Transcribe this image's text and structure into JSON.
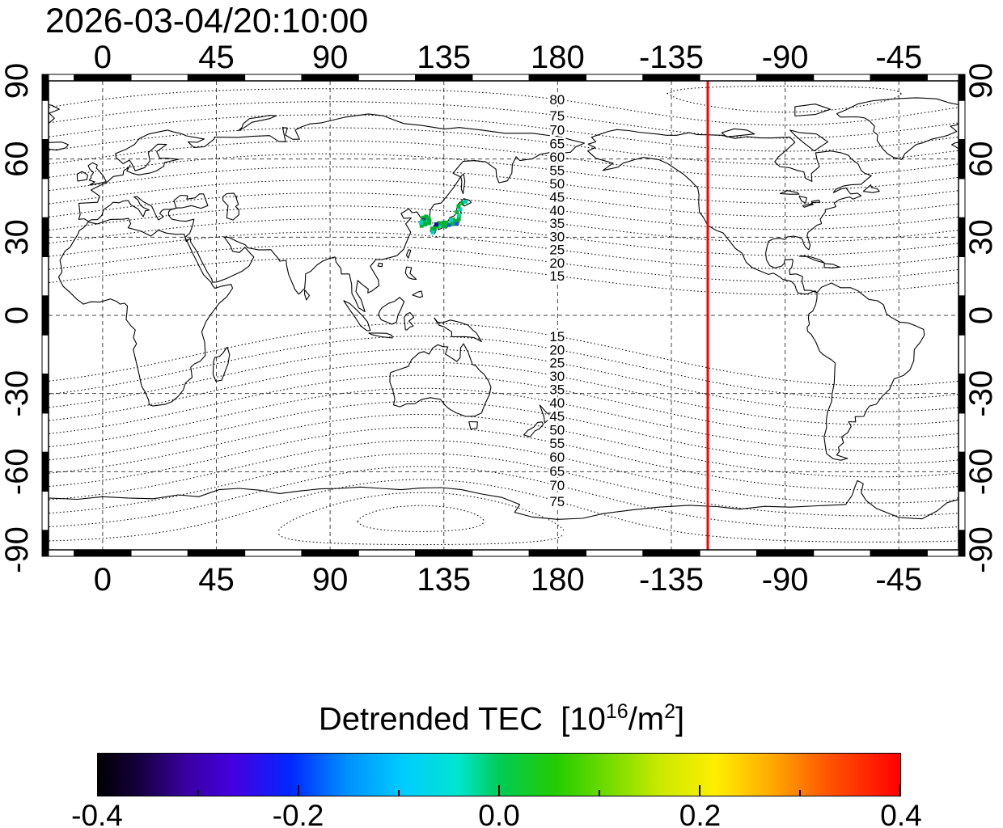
{
  "header": {
    "timestamp": "2026-03-04/20:10:00"
  },
  "chart_data": {
    "type": "map",
    "projection": "equirectangular",
    "title": "2026-03-04/20:10:00",
    "map_window": {
      "lon_min": -21.4,
      "lon_max": 338.6,
      "lat_min": -90,
      "lat_max": 90
    },
    "axes": {
      "lon_tick_values": [
        0,
        45,
        90,
        135,
        180,
        225,
        270,
        315
      ],
      "lon_tick_labels": [
        "0",
        "45",
        "90",
        "135",
        "180",
        "-135",
        "-90",
        "-45"
      ],
      "lat_tick_values": [
        90,
        60,
        30,
        0,
        -30,
        -60,
        -90
      ],
      "lat_tick_labels": [
        "90",
        "60",
        "30",
        "0",
        "-30",
        "-60",
        "-90"
      ]
    },
    "grid": {
      "style": "dashed",
      "lon_interval_deg": 45,
      "lat_interval_deg": 30
    },
    "magnetic_latitude_contours": {
      "style": "dotted",
      "interval_deg": 5,
      "min_level": 15,
      "max_level": 85,
      "labeled_levels_north": [
        80,
        75,
        70,
        65,
        60,
        55,
        50,
        45,
        40,
        35,
        30,
        25,
        20,
        15
      ],
      "labeled_levels_south": [
        15,
        20,
        25,
        30,
        35,
        40,
        45,
        50,
        55,
        60,
        65,
        70,
        75
      ],
      "label_longitude_deg": 180
    },
    "red_meridian": {
      "longitude_deg": -120.6,
      "color": "#ff0000"
    },
    "tec_points": [
      {
        "lon": 126.9,
        "lat": 37.5,
        "color": "#00b432"
      },
      {
        "lon": 127.5,
        "lat": 37.2,
        "color": "#00b432"
      },
      {
        "lon": 128.2,
        "lat": 37.4,
        "color": "#00d2c8"
      },
      {
        "lon": 126.7,
        "lat": 36.8,
        "color": "#00b432"
      },
      {
        "lon": 127.3,
        "lat": 36.5,
        "color": "#1e0a96"
      },
      {
        "lon": 127.8,
        "lat": 36.2,
        "color": "#1e0a96"
      },
      {
        "lon": 128.3,
        "lat": 36.0,
        "color": "#2846ff"
      },
      {
        "lon": 126.5,
        "lat": 36.1,
        "color": "#00b432"
      },
      {
        "lon": 127.0,
        "lat": 35.7,
        "color": "#00b432"
      },
      {
        "lon": 128.0,
        "lat": 35.5,
        "color": "#00b432"
      },
      {
        "lon": 128.9,
        "lat": 35.3,
        "color": "#00e096"
      },
      {
        "lon": 126.4,
        "lat": 35.0,
        "color": "#2846ff"
      },
      {
        "lon": 127.6,
        "lat": 34.9,
        "color": "#00b432"
      },
      {
        "lon": 129.2,
        "lat": 35.6,
        "color": "#00b432"
      },
      {
        "lon": 126.2,
        "lat": 34.4,
        "color": "#00b432"
      },
      {
        "lon": 128.6,
        "lat": 36.6,
        "color": "#00d2c8"
      },
      {
        "lon": 129.0,
        "lat": 37.0,
        "color": "#00b432"
      },
      {
        "lon": 128.0,
        "lat": 37.9,
        "color": "#00b432"
      },
      {
        "lon": 129.3,
        "lat": 36.4,
        "color": "#00b432"
      },
      {
        "lon": 126.0,
        "lat": 35.6,
        "color": "#00d2c8"
      },
      {
        "lon": 130.4,
        "lat": 33.3,
        "color": "#00b432"
      },
      {
        "lon": 131.0,
        "lat": 32.6,
        "color": "#00b432"
      },
      {
        "lon": 130.6,
        "lat": 31.8,
        "color": "#00d2c8"
      },
      {
        "lon": 131.4,
        "lat": 33.6,
        "color": "#00b432"
      },
      {
        "lon": 132.6,
        "lat": 34.2,
        "color": "#00b432"
      },
      {
        "lon": 133.8,
        "lat": 34.4,
        "color": "#00e096"
      },
      {
        "lon": 134.8,
        "lat": 34.6,
        "color": "#00b432"
      },
      {
        "lon": 135.6,
        "lat": 34.8,
        "color": "#00d2c8"
      },
      {
        "lon": 136.3,
        "lat": 34.9,
        "color": "#00b432"
      },
      {
        "lon": 137.1,
        "lat": 34.7,
        "color": "#2846ff"
      },
      {
        "lon": 138.3,
        "lat": 35.0,
        "color": "#00b432"
      },
      {
        "lon": 139.1,
        "lat": 35.3,
        "color": "#00b432"
      },
      {
        "lon": 139.9,
        "lat": 35.6,
        "color": "#00d2c8"
      },
      {
        "lon": 140.5,
        "lat": 36.2,
        "color": "#00b432"
      },
      {
        "lon": 140.9,
        "lat": 37.1,
        "color": "#00b432"
      },
      {
        "lon": 141.0,
        "lat": 38.4,
        "color": "#00e096"
      },
      {
        "lon": 140.2,
        "lat": 39.6,
        "color": "#00b432"
      },
      {
        "lon": 141.4,
        "lat": 40.7,
        "color": "#00d2c8"
      },
      {
        "lon": 140.8,
        "lat": 41.9,
        "color": "#00b432"
      },
      {
        "lon": 142.3,
        "lat": 43.1,
        "color": "#00b432"
      },
      {
        "lon": 143.6,
        "lat": 43.6,
        "color": "#00d2c8"
      },
      {
        "lon": 134.9,
        "lat": 35.6,
        "color": "#00b432"
      },
      {
        "lon": 133.1,
        "lat": 35.4,
        "color": "#00b432"
      },
      {
        "lon": 132.0,
        "lat": 34.9,
        "color": "#1e0a96"
      },
      {
        "lon": 136.0,
        "lat": 35.6,
        "color": "#00b432"
      },
      {
        "lon": 138.7,
        "lat": 36.7,
        "color": "#00b432"
      },
      {
        "lon": 137.8,
        "lat": 36.5,
        "color": "#00d2c8"
      },
      {
        "lon": 139.5,
        "lat": 36.1,
        "color": "#00b432"
      },
      {
        "lon": 140.1,
        "lat": 35.1,
        "color": "#2846ff"
      },
      {
        "lon": 135.2,
        "lat": 34.2,
        "color": "#00b432"
      }
    ],
    "colorbar": {
      "title_plain": "Detrended TEC [10^16/m^2]",
      "title_prefix": "Detrended TEC  [10",
      "title_exponent": "16",
      "title_mid": "/m",
      "title_exponent2": "2",
      "title_suffix": "]",
      "min": -0.4,
      "max": 0.4,
      "tick_labels": [
        "-0.4",
        "-0.2",
        "0.0",
        "0.2",
        "0.4"
      ],
      "gradient": [
        [
          0,
          "#000000"
        ],
        [
          0.05,
          "#14003c"
        ],
        [
          0.11,
          "#3a00a0"
        ],
        [
          0.17,
          "#4400e0"
        ],
        [
          0.24,
          "#0028ff"
        ],
        [
          0.31,
          "#0090ff"
        ],
        [
          0.38,
          "#00ccff"
        ],
        [
          0.45,
          "#00e6cc"
        ],
        [
          0.5,
          "#00cc55"
        ],
        [
          0.57,
          "#22cc00"
        ],
        [
          0.64,
          "#77dd00"
        ],
        [
          0.7,
          "#c8ea00"
        ],
        [
          0.77,
          "#ffee00"
        ],
        [
          0.84,
          "#ffaa00"
        ],
        [
          0.91,
          "#ff5500"
        ],
        [
          1,
          "#ff0000"
        ]
      ]
    }
  }
}
